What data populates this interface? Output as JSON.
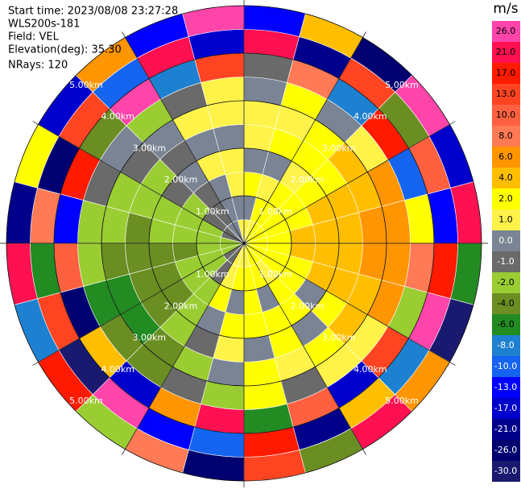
{
  "chart_data": {
    "type": "ppi",
    "info": [
      "Start time: 2023/08/08 23:27:28",
      "WLS200s-181",
      "Field: VEL",
      "Elevation(deg): 35.30",
      "NRays: 120"
    ],
    "rlim": [
      0,
      5
    ],
    "rticks": [
      {
        "value": 1,
        "label": "1.00km"
      },
      {
        "value": 2,
        "label": "2.00km"
      },
      {
        "value": 3,
        "label": "3.00km"
      },
      {
        "value": 4,
        "label": "4.00km"
      },
      {
        "value": 5,
        "label": "5.00km"
      }
    ],
    "values": [
      [
        0.5,
        0,
        1.5,
        0,
        0.5,
        1,
        0,
        -1.5,
        21,
        -13
      ],
      [
        1,
        1.5,
        1,
        0,
        1.5,
        0.5,
        2,
        8,
        -21,
        4
      ],
      [
        1.5,
        2,
        1.5,
        1,
        2,
        1.5,
        0,
        -8,
        13,
        -26
      ],
      [
        1.5,
        2,
        2,
        2.5,
        2,
        3,
        1,
        17,
        -4,
        26
      ],
      [
        2,
        2,
        2.5,
        3,
        3,
        4,
        5,
        -10,
        10,
        -17
      ],
      [
        2,
        2.5,
        3,
        3,
        4,
        5,
        6,
        2,
        -13,
        21
      ],
      [
        2,
        2.5,
        3,
        3.5,
        4,
        5,
        6,
        8,
        17,
        -6
      ],
      [
        2,
        2,
        2.5,
        3,
        3,
        4,
        5,
        -2,
        26,
        -30
      ],
      [
        1.5,
        2,
        2,
        0,
        2.5,
        3,
        1,
        13,
        -8,
        6
      ],
      [
        1.5,
        1,
        2,
        1.5,
        0,
        2,
        0.5,
        -17,
        4,
        21
      ],
      [
        1.5,
        1.5,
        0,
        2,
        1.5,
        1,
        -1,
        10,
        -21,
        -4
      ],
      [
        1,
        1.5,
        2,
        1.5,
        0,
        1.5,
        2,
        -6,
        17,
        13
      ],
      [
        1,
        1.5,
        0,
        1.5,
        1,
        0,
        -2,
        21,
        -10,
        -26
      ],
      [
        0.5,
        1,
        1.5,
        0,
        -1.5,
        -2,
        -1,
        6,
        -13,
        8
      ],
      [
        -1,
        -1.5,
        -2,
        -3,
        -3,
        -4,
        -5,
        -17,
        26,
        -2
      ],
      [
        -1.5,
        -2,
        -3,
        -4,
        -5,
        -6,
        -4,
        4,
        -30,
        17
      ],
      [
        -2,
        -3,
        -3,
        -4,
        -5,
        -6,
        -7,
        -26,
        13,
        -8
      ],
      [
        -2,
        -3,
        -3.5,
        -4,
        -4,
        -5,
        -3,
        10,
        -6,
        21
      ],
      [
        -2,
        -2.5,
        -3,
        -3,
        -4,
        -3,
        -2,
        -13,
        8,
        -21
      ],
      [
        -1.5,
        -2,
        -2,
        -2.5,
        -3,
        -2,
        -1.5,
        17,
        -26,
        2
      ],
      [
        -1,
        -1.5,
        -2,
        -1.5,
        -2,
        -1,
        0,
        -4,
        13,
        -17
      ],
      [
        -0.5,
        -1,
        -1.5,
        0,
        -1,
        0,
        -2,
        26,
        -10,
        6
      ],
      [
        0,
        0,
        -0.5,
        0.5,
        0,
        0.5,
        -1,
        -8,
        21,
        -13
      ],
      [
        0.5,
        0,
        0.5,
        1,
        0,
        0.5,
        1,
        13,
        -17,
        26
      ]
    ],
    "colorbar": {
      "title": "m/s",
      "ticks": [
        {
          "value": 26,
          "label": "26.0"
        },
        {
          "value": 21,
          "label": "21.0"
        },
        {
          "value": 17,
          "label": "17.0"
        },
        {
          "value": 13,
          "label": "13.0"
        },
        {
          "value": 10,
          "label": "10.0"
        },
        {
          "value": 8,
          "label": "8.0"
        },
        {
          "value": 6,
          "label": "6.0"
        },
        {
          "value": 4,
          "label": "4.0"
        },
        {
          "value": 2,
          "label": "2.0"
        },
        {
          "value": 1,
          "label": "1.0"
        },
        {
          "value": 0,
          "label": "0.0"
        },
        {
          "value": -1,
          "label": "-1.0"
        },
        {
          "value": -2,
          "label": "-2.0"
        },
        {
          "value": -4,
          "label": "-4.0"
        },
        {
          "value": -6,
          "label": "-6.0"
        },
        {
          "value": -8,
          "label": "-8.0"
        },
        {
          "value": -10,
          "label": "-10.0"
        },
        {
          "value": -13,
          "label": "-13.0"
        },
        {
          "value": -17,
          "label": "-17.0"
        },
        {
          "value": -21,
          "label": "-21.0"
        },
        {
          "value": -26,
          "label": "-26.0"
        },
        {
          "value": -30,
          "label": "-30.0"
        }
      ],
      "colors": [
        "#ff44aa",
        "#ff1050",
        "#ff1a00",
        "#ff4422",
        "#ff6040",
        "#ff7a55",
        "#ff9500",
        "#ffbf00",
        "#ffff00",
        "#fff34a",
        "#7a8494",
        "#6a6a6a",
        "#9acd32",
        "#6b8e23",
        "#228b22",
        "#1e80d0",
        "#1464f0",
        "#0000ff",
        "#0000cd",
        "#00008b",
        "#000070",
        "#191970"
      ]
    }
  }
}
